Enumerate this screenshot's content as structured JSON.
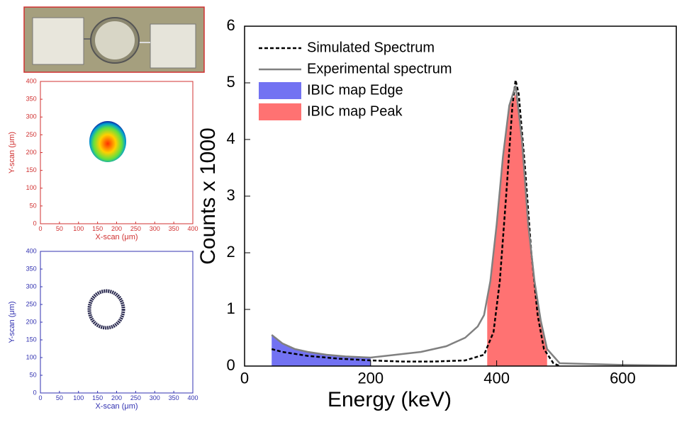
{
  "chart_data": [
    {
      "type": "line",
      "xlabel": "Energy (keV)",
      "ylabel": "Counts x 1000",
      "xlim": [
        0,
        685
      ],
      "ylim": [
        0,
        6
      ],
      "xticks": [
        0,
        200,
        400,
        600
      ],
      "yticks": [
        0,
        1,
        2,
        3,
        4,
        5,
        6
      ],
      "legend": "upper left",
      "series": [
        {
          "name": "Simulated Spectrum",
          "color": "#000000",
          "style": "dashed",
          "x": [
            43,
            60,
            100,
            150,
            200,
            250,
            300,
            350,
            380,
            395,
            405,
            415,
            425,
            430,
            435,
            445,
            455,
            465,
            475,
            490,
            500
          ],
          "values": [
            0.3,
            0.25,
            0.18,
            0.13,
            0.1,
            0.08,
            0.08,
            0.1,
            0.2,
            0.6,
            1.5,
            3.0,
            4.6,
            5.05,
            4.8,
            3.5,
            2.0,
            0.9,
            0.3,
            0.05,
            0
          ]
        },
        {
          "name": "Experimental spectrum",
          "color": "#808080",
          "style": "solid",
          "x": [
            43,
            60,
            80,
            100,
            130,
            160,
            200,
            240,
            280,
            320,
            350,
            370,
            380,
            390,
            400,
            410,
            420,
            430,
            440,
            450,
            460,
            470,
            480,
            500,
            600,
            685
          ],
          "values": [
            0.55,
            0.4,
            0.3,
            0.25,
            0.2,
            0.17,
            0.15,
            0.2,
            0.25,
            0.35,
            0.5,
            0.7,
            0.9,
            1.5,
            2.5,
            3.7,
            4.6,
            4.95,
            4.0,
            2.5,
            1.5,
            0.8,
            0.3,
            0.05,
            0.02,
            0.01
          ]
        },
        {
          "name": "IBIC map Edge",
          "color": "#7272f2",
          "style": "area",
          "x": [
            43,
            60,
            80,
            100,
            130,
            160,
            200
          ],
          "values": [
            0.55,
            0.4,
            0.3,
            0.25,
            0.2,
            0.17,
            0.15
          ]
        },
        {
          "name": "IBIC map Peak",
          "color": "#ff7272",
          "style": "area",
          "x": [
            385,
            390,
            400,
            410,
            420,
            430,
            440,
            450,
            460,
            470,
            480
          ],
          "values": [
            1.1,
            1.5,
            2.5,
            3.7,
            4.6,
            4.8,
            4.0,
            2.5,
            1.5,
            0.8,
            0.3
          ]
        }
      ]
    },
    {
      "type": "heatmap",
      "color": "#d03030",
      "xlabel": "X-scan (μm)",
      "ylabel": "Y-scan (μm)",
      "xlim": [
        0,
        400
      ],
      "ylim": [
        0,
        400
      ],
      "xticks": [
        0,
        50,
        100,
        150,
        200,
        250,
        300,
        350,
        400
      ],
      "yticks": [
        0,
        50,
        100,
        150,
        200,
        250,
        300,
        350,
        400
      ]
    },
    {
      "type": "heatmap",
      "color": "#3030b0",
      "xlabel": "X-scan (μm)",
      "ylabel": "Y-scan (μm)",
      "xlim": [
        0,
        400
      ],
      "ylim": [
        0,
        400
      ],
      "xticks": [
        0,
        50,
        100,
        150,
        200,
        250,
        300,
        350,
        400
      ],
      "yticks": [
        0,
        50,
        100,
        150,
        200,
        250,
        300,
        350,
        400
      ]
    }
  ]
}
